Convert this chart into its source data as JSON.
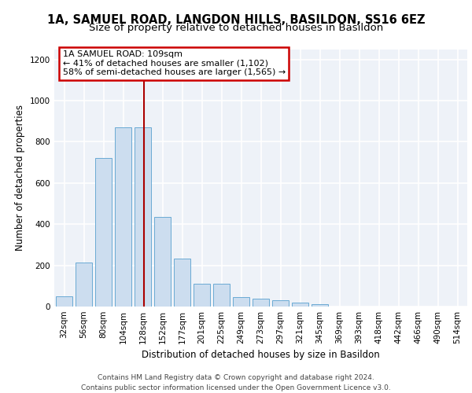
{
  "title_line1": "1A, SAMUEL ROAD, LANGDON HILLS, BASILDON, SS16 6EZ",
  "title_line2": "Size of property relative to detached houses in Basildon",
  "xlabel": "Distribution of detached houses by size in Basildon",
  "ylabel": "Number of detached properties",
  "categories": [
    "32sqm",
    "56sqm",
    "80sqm",
    "104sqm",
    "128sqm",
    "152sqm",
    "177sqm",
    "201sqm",
    "225sqm",
    "249sqm",
    "273sqm",
    "297sqm",
    "321sqm",
    "345sqm",
    "369sqm",
    "393sqm",
    "418sqm",
    "442sqm",
    "466sqm",
    "490sqm",
    "514sqm"
  ],
  "values": [
    48,
    212,
    720,
    870,
    870,
    437,
    233,
    110,
    110,
    47,
    40,
    30,
    20,
    10,
    0,
    0,
    0,
    0,
    0,
    0,
    0
  ],
  "bar_color": "#ccddef",
  "bar_edge_color": "#6aaad4",
  "vline_x": 4.05,
  "vline_color": "#aa0000",
  "annotation_text": "1A SAMUEL ROAD: 109sqm\n← 41% of detached houses are smaller (1,102)\n58% of semi-detached houses are larger (1,565) →",
  "annotation_box_color": "#ffffff",
  "annotation_box_edge": "#cc0000",
  "ylim": [
    0,
    1250
  ],
  "yticks": [
    0,
    200,
    400,
    600,
    800,
    1000,
    1200
  ],
  "background_color": "#eef2f8",
  "footer_text": "Contains HM Land Registry data © Crown copyright and database right 2024.\nContains public sector information licensed under the Open Government Licence v3.0.",
  "title_fontsize": 10.5,
  "subtitle_fontsize": 9.5,
  "annotation_fontsize": 8,
  "xlabel_fontsize": 8.5,
  "ylabel_fontsize": 8.5,
  "tick_fontsize": 7.5,
  "footer_fontsize": 6.5
}
